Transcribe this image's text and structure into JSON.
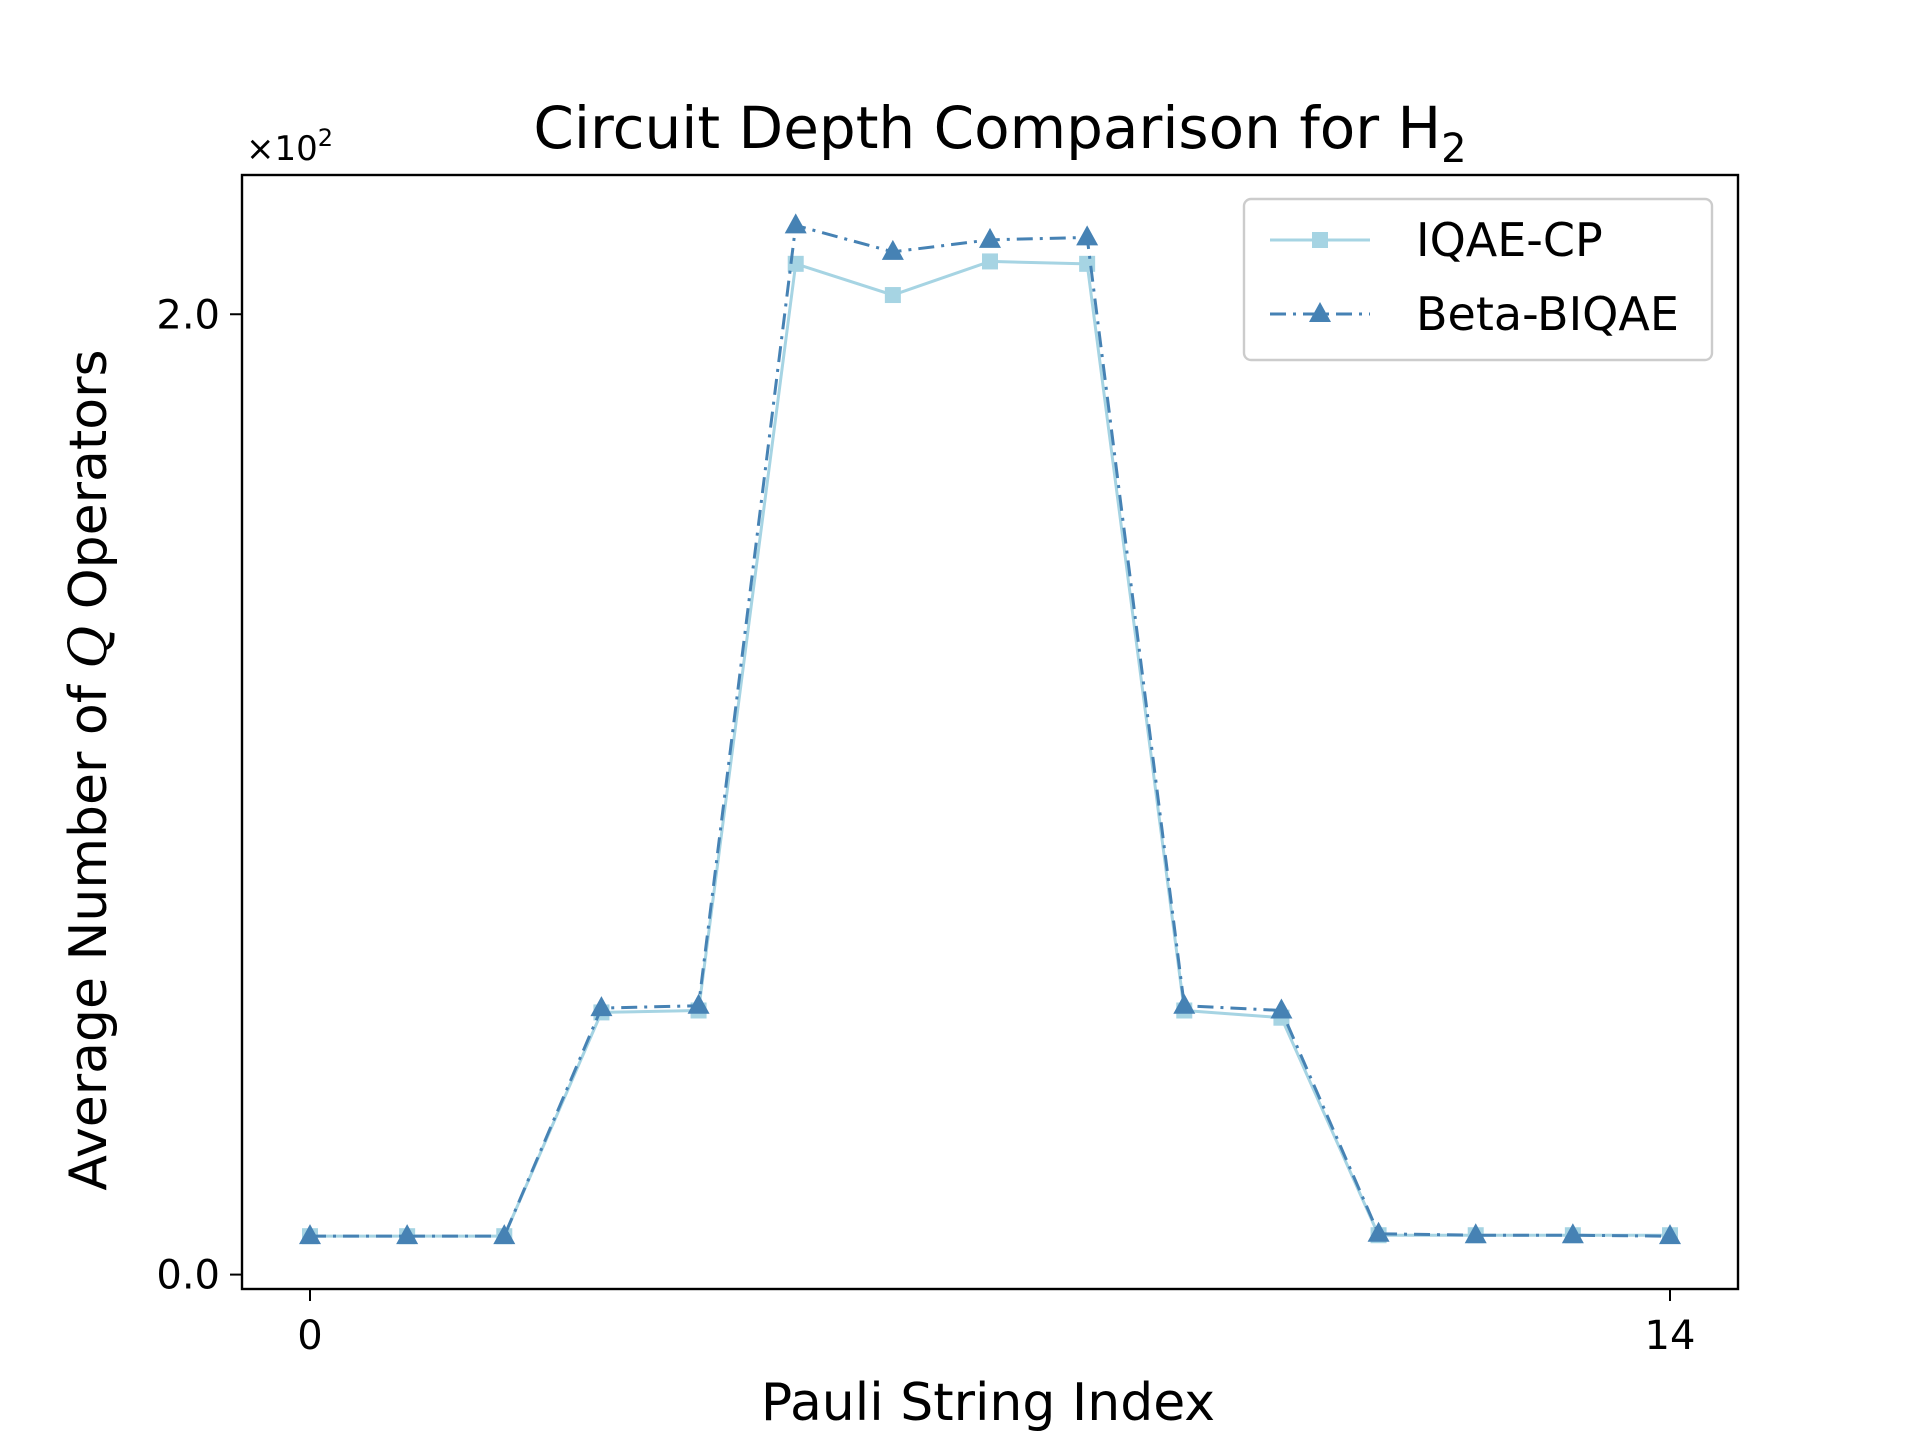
{
  "chart_data": {
    "type": "line",
    "title": {
      "main": "Circuit Depth Comparison for H",
      "subscript": "2"
    },
    "xlabel": "Pauli String Index",
    "ylabel": {
      "before": "Average Number of ",
      "symbol": "Q",
      "after": " Operators"
    },
    "y_multiplier": {
      "base": "×10",
      "exponent": "2"
    },
    "x": [
      0,
      1,
      2,
      3,
      4,
      5,
      6,
      7,
      8,
      9,
      10,
      11,
      12,
      13,
      14
    ],
    "xticks": [
      0,
      14
    ],
    "xtick_labels": [
      "0",
      "14"
    ],
    "yticks": [
      0.0,
      2.0
    ],
    "ytick_labels": [
      "0.0",
      "2.0"
    ],
    "xlim": [
      -0.7,
      14.7
    ],
    "ylim": [
      -0.03,
      2.29
    ],
    "series": [
      {
        "name": "IQAE-CP",
        "marker": "square",
        "linestyle": "solid",
        "color": "#a6d4e3",
        "values": [
          0.08,
          0.08,
          0.08,
          0.546,
          0.55,
          2.105,
          2.04,
          2.11,
          2.105,
          0.55,
          0.535,
          0.082,
          0.082,
          0.082,
          0.082
        ]
      },
      {
        "name": "Beta-BIQAE",
        "marker": "triangle",
        "linestyle": "dashdot",
        "color": "#4682b4",
        "values": [
          0.08,
          0.08,
          0.08,
          0.555,
          0.56,
          2.185,
          2.13,
          2.155,
          2.16,
          0.56,
          0.55,
          0.085,
          0.082,
          0.082,
          0.08
        ]
      }
    ],
    "grid": false,
    "legend_position": "top-right"
  }
}
